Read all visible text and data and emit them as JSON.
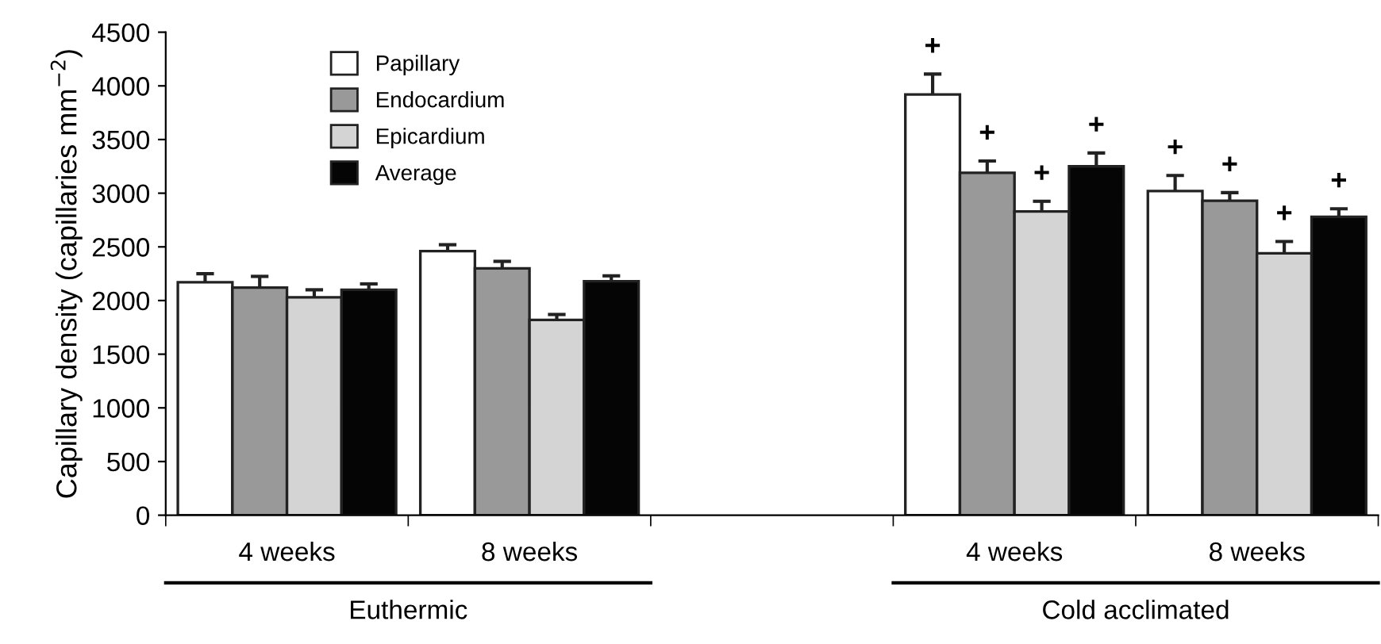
{
  "chart_data": {
    "type": "bar",
    "ylabel": "Capillary density (capillaries mm$^{−2}$)",
    "categories": [
      "4 weeks",
      "8 weeks",
      null,
      "4 weeks",
      "8 weeks"
    ],
    "series": [
      {
        "name": "Papillary",
        "color": "#ffffff",
        "values": [
          2170,
          2460,
          null,
          3920,
          3020
        ],
        "errors": [
          80,
          60,
          null,
          190,
          145
        ],
        "value_labels": [
          null,
          null,
          null,
          "+",
          "+"
        ]
      },
      {
        "name": "Endocardium",
        "color": "#999999",
        "values": [
          2120,
          2300,
          null,
          3190,
          2930
        ],
        "errors": [
          105,
          65,
          null,
          110,
          75
        ],
        "value_labels": [
          null,
          null,
          null,
          "+",
          "+"
        ]
      },
      {
        "name": "Epicardium",
        "color": "#d4d4d4",
        "values": [
          2030,
          1820,
          null,
          2830,
          2440
        ],
        "errors": [
          70,
          50,
          null,
          95,
          110
        ],
        "value_labels": [
          null,
          null,
          null,
          "+",
          "+"
        ]
      },
      {
        "name": "Average",
        "color": "#050505",
        "values": [
          2100,
          2180,
          null,
          3250,
          2780
        ],
        "errors": [
          55,
          50,
          null,
          125,
          75
        ],
        "value_labels": [
          null,
          null,
          null,
          "+",
          "+"
        ]
      }
    ],
    "annotations": [
      "Euthermic",
      "Cold acclimated"
    ],
    "ylim": [
      0,
      4500
    ],
    "yticks": [
      0,
      500,
      1000,
      1500,
      2000,
      2500,
      3000,
      3500,
      4000,
      4500
    ],
    "legend": "top left",
    "grid": false
  }
}
